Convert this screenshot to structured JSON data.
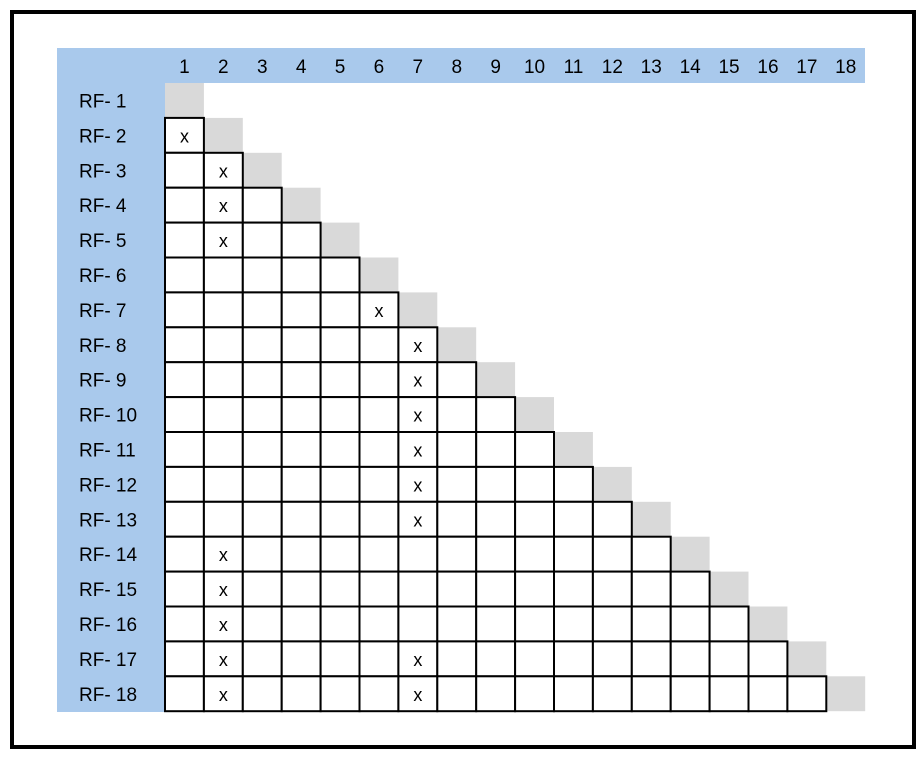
{
  "matrix": {
    "column_labels": [
      "1",
      "2",
      "3",
      "4",
      "5",
      "6",
      "7",
      "8",
      "9",
      "10",
      "11",
      "12",
      "13",
      "14",
      "15",
      "16",
      "17",
      "18"
    ],
    "row_labels": [
      "RF- 1",
      "RF- 2",
      "RF- 3",
      "RF- 4",
      "RF- 5",
      "RF- 6",
      "RF- 7",
      "RF- 8",
      "RF- 9",
      "RF- 10",
      "RF- 11",
      "RF- 12",
      "RF- 13",
      "RF- 14",
      "RF- 15",
      "RF- 16",
      "RF- 17",
      "RF- 18"
    ],
    "mark": "x",
    "marked_cells": [
      {
        "row": 2,
        "col": 1
      },
      {
        "row": 3,
        "col": 2
      },
      {
        "row": 4,
        "col": 2
      },
      {
        "row": 5,
        "col": 2
      },
      {
        "row": 7,
        "col": 6
      },
      {
        "row": 8,
        "col": 7
      },
      {
        "row": 9,
        "col": 7
      },
      {
        "row": 10,
        "col": 7
      },
      {
        "row": 11,
        "col": 7
      },
      {
        "row": 12,
        "col": 7
      },
      {
        "row": 13,
        "col": 7
      },
      {
        "row": 14,
        "col": 2
      },
      {
        "row": 15,
        "col": 2
      },
      {
        "row": 16,
        "col": 2
      },
      {
        "row": 17,
        "col": 2
      },
      {
        "row": 17,
        "col": 7
      },
      {
        "row": 18,
        "col": 2
      },
      {
        "row": 18,
        "col": 7
      }
    ],
    "colors": {
      "header_bg": "#a9c9ec",
      "diagonal_bg": "#d9d9d9",
      "grid_line": "#000000",
      "cell_bg": "#ffffff"
    }
  }
}
